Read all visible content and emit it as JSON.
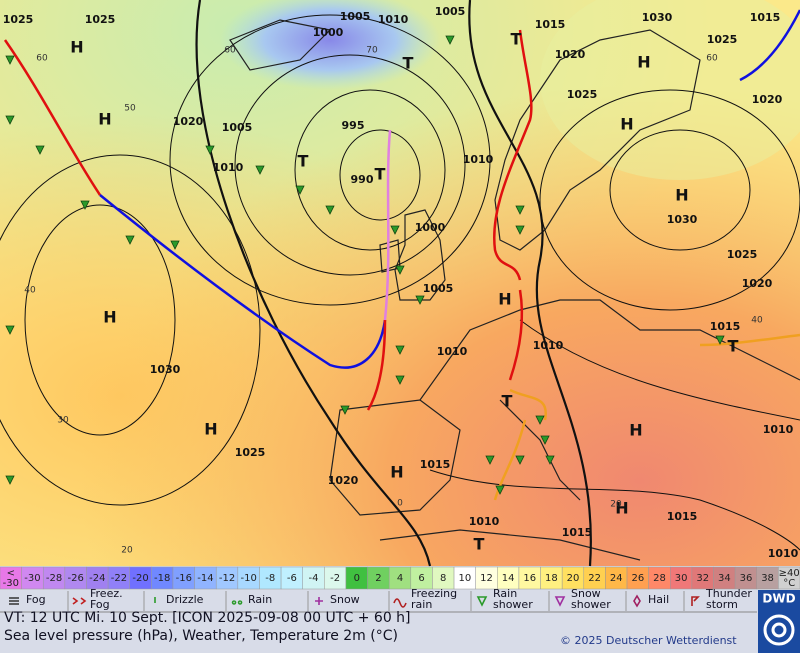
{
  "map": {
    "pressure_labels": [
      "1025",
      "1025",
      "1005",
      "1010",
      "1005",
      "1000",
      "1015",
      "1030",
      "1015",
      "1025",
      "1020",
      "1025",
      "1020",
      "1020",
      "1005",
      "995",
      "1010",
      "990",
      "1010",
      "1030",
      "1000",
      "1025",
      "1020",
      "1005",
      "1015",
      "1010",
      "1010",
      "1030",
      "1025",
      "1015",
      "1020",
      "1010",
      "1015",
      "1015",
      "1010",
      "1010"
    ],
    "centers": [
      "H",
      "H",
      "H",
      "H",
      "H",
      "H",
      "H",
      "H",
      "H",
      "H",
      "H",
      "T",
      "T",
      "T",
      "T",
      "T",
      "T",
      "T"
    ],
    "isotherm_labels": [
      "60",
      "50",
      "40",
      "30",
      "20",
      "60",
      "70",
      "60",
      "40",
      "20",
      "0"
    ]
  },
  "temperature_scale": [
    {
      "label": [
        "<",
        "-30"
      ],
      "color": "#e878e8"
    },
    {
      "label": [
        "-30"
      ],
      "color": "#d088f0"
    },
    {
      "label": [
        "-28"
      ],
      "color": "#c088f0"
    },
    {
      "label": [
        "-26"
      ],
      "color": "#b088f0"
    },
    {
      "label": [
        "-24"
      ],
      "color": "#a080f0"
    },
    {
      "label": [
        "-22"
      ],
      "color": "#9080f8"
    },
    {
      "label": [
        "-20"
      ],
      "color": "#7070ff"
    },
    {
      "label": [
        "-18"
      ],
      "color": "#7088ff"
    },
    {
      "label": [
        "-16"
      ],
      "color": "#80a0ff"
    },
    {
      "label": [
        "-14"
      ],
      "color": "#90b4ff"
    },
    {
      "label": [
        "-12"
      ],
      "color": "#a0c8ff"
    },
    {
      "label": [
        "-10"
      ],
      "color": "#a8d8ff"
    },
    {
      "label": [
        "-8"
      ],
      "color": "#b0e8ff"
    },
    {
      "label": [
        "-6"
      ],
      "color": "#c0f0ff"
    },
    {
      "label": [
        "-4"
      ],
      "color": "#d0f4f4"
    },
    {
      "label": [
        "-2"
      ],
      "color": "#dcf8ec"
    },
    {
      "label": [
        "0"
      ],
      "color": "#40c040"
    },
    {
      "label": [
        "2"
      ],
      "color": "#70d060"
    },
    {
      "label": [
        "4"
      ],
      "color": "#a0e080"
    },
    {
      "label": [
        "6"
      ],
      "color": "#c0f0a0"
    },
    {
      "label": [
        "8"
      ],
      "color": "#e0f8c0"
    },
    {
      "label": [
        "10"
      ],
      "color": "#ffffff"
    },
    {
      "label": [
        "12"
      ],
      "color": "#ffffe0"
    },
    {
      "label": [
        "14"
      ],
      "color": "#ffffc0"
    },
    {
      "label": [
        "16"
      ],
      "color": "#fff8a0"
    },
    {
      "label": [
        "18"
      ],
      "color": "#fff080"
    },
    {
      "label": [
        "20"
      ],
      "color": "#ffe060"
    },
    {
      "label": [
        "22"
      ],
      "color": "#ffd050"
    },
    {
      "label": [
        "24"
      ],
      "color": "#ffb848"
    },
    {
      "label": [
        "26"
      ],
      "color": "#ffa050"
    },
    {
      "label": [
        "28"
      ],
      "color": "#ff8868"
    },
    {
      "label": [
        "30"
      ],
      "color": "#f07878"
    },
    {
      "label": [
        "32"
      ],
      "color": "#e07878"
    },
    {
      "label": [
        "34"
      ],
      "color": "#d08080"
    },
    {
      "label": [
        "36"
      ],
      "color": "#c09090"
    },
    {
      "label": [
        "38"
      ],
      "color": "#b8a0a0"
    },
    {
      "label": [
        "≥40",
        "°C"
      ],
      "color": "#d0d0d0"
    }
  ],
  "legend": [
    [
      "Fog"
    ],
    [
      "Freez.",
      "Fog"
    ],
    [
      "Drizzle"
    ],
    [
      "Rain"
    ],
    [
      "Snow"
    ],
    [
      "Freezing",
      "rain"
    ],
    [
      "Rain",
      "shower"
    ],
    [
      "Snow",
      "shower"
    ],
    [
      "Hail"
    ],
    [
      "Thunder",
      "storm"
    ]
  ],
  "footer": {
    "valid_time": "VT: 12 UTC Mi.  10 Sept. [ICON 2025-09-08  00 UTC + 60 h]",
    "description": "Sea level pressure (hPa), Weather, Temperature 2m (°C)",
    "copyright": "© 2025 Deutscher Wetterdienst",
    "logo": "DWD"
  }
}
